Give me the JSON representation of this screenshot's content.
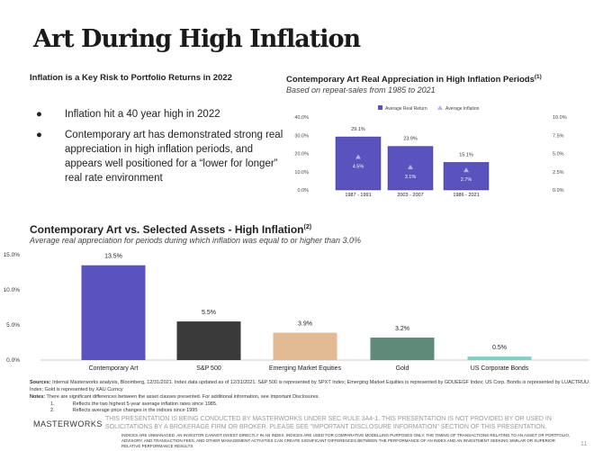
{
  "title": "Art During High Inflation",
  "left": {
    "heading": "Inflation is a Key Risk to Portfolio Returns in 2022",
    "bullets": [
      "Inflation hit a 40 year high in 2022",
      "Contemporary art has demonstrated strong real appreciation in high inflation periods, and appears well positioned for a “lower for longer” real rate environment"
    ]
  },
  "colors": {
    "purple": "#5a52bd",
    "triangle": "#b7b2e8"
  },
  "chart_data": [
    {
      "type": "bar",
      "title": "Contemporary Art Real Appreciation in High Inflation Periods",
      "title_sup": "(1)",
      "subtitle": "Based on repeat-sales from 1985 to 2021",
      "categories": [
        "1987 - 1991",
        "2003 - 2007",
        "1986 - 2021"
      ],
      "series": [
        {
          "name": "Average Real Return",
          "values": [
            29.1,
            23.9,
            15.1
          ],
          "labels": [
            "29.1%",
            "23.9%",
            "15.1%"
          ],
          "axis": "left",
          "type": "bar"
        },
        {
          "name": "Average Inflation",
          "values": [
            4.5,
            3.1,
            2.7
          ],
          "labels": [
            "4.5%",
            "3.1%",
            "2.7%"
          ],
          "axis": "right",
          "type": "scatter",
          "marker": "triangle"
        }
      ],
      "ylim": [
        0,
        40
      ],
      "yticks": [
        "0.0%",
        "10.0%",
        "20.0%",
        "30.0%",
        "40.0%"
      ],
      "y2lim": [
        0,
        10
      ],
      "y2ticks": [
        "0.0%",
        "2.5%",
        "5.0%",
        "7.5%",
        "10.0%"
      ],
      "legend": "top",
      "grid": false
    },
    {
      "type": "bar",
      "title": "Contemporary Art vs. Selected Assets - High Inflation",
      "title_sup": "(2)",
      "subtitle": "Average real appreciation for periods during which inflation was equal to or higher than 3.0%",
      "categories": [
        "Contemporary Art",
        "S&P 500",
        "Emerging Market Equities",
        "Gold",
        "US Corporate Bonds"
      ],
      "values": [
        13.5,
        5.5,
        3.9,
        3.2,
        0.5
      ],
      "labels": [
        "13.5%",
        "5.5%",
        "3.9%",
        "3.2%",
        "0.5%"
      ],
      "colors": [
        "#5a52bd",
        "#3a3a3a",
        "#e2ba93",
        "#5f8a79",
        "#7fd0c4"
      ],
      "ylim": [
        0,
        15
      ],
      "yticks": [
        "0.0%",
        "5.0%",
        "10.0%",
        "15.0%"
      ],
      "grid": false
    }
  ],
  "footer": {
    "sources_label": "Sources:",
    "sources": " Internal Masterworks analysis, Bloomberg, 12/31/2021. Index data updated as of 12/31/2021. S&P 500 is represented by SPXT Index; Emerging Market Equities is represented by GDUEEGF Index; US Corp. Bonds is represented by LUACTRUU Index; Gold is represented by XAU Curncy",
    "notes_label": "Notes:",
    "notes": " There are significant differences between the asset classes presented. For additional information, see Important Disclosures.",
    "note_items": [
      {
        "n": "1.",
        "t": "Reflects the two highest 5-year average inflation rates since 1985."
      },
      {
        "n": "2.",
        "t": "Reflects average price changes in the indices since 1995"
      }
    ],
    "disclaimer": "THIS PRESENTATION IS BEING CONDUCTED BY MASTERWORKS UNDER SEC RULE 3A4-1. THIS PRESENTATION IS NOT PROVIDED BY OR USED IN SOLICITATIONS BY A BROKERAGE FIRM OR BROKER. PLEASE SEE \"IMPORTANT DISCLOSURE INFORMATION\" SECTION OF THIS PRESENTATION.",
    "logo": "MASTERWORKS",
    "page": "11",
    "indices": "INDICES ARE UNMANAGED. AN INVESTOR CANNOT INVEST DIRECTLY IN AN INDEX. INDICES ARE USED FOR COMPARATIVE MODELLING PURPOSES ONLY. THE TIMING OF TRANSACTIONS RELATING TO AN ASSET OR PORTFOLIO, ADVISORY, AND TRANSACTION FEES, AND OTHER MANAGEMENT ACTIVITIES CAN CREATE SIGNIFICANT DIFFERENCES BETWEEN THE PERFORMANCE OF AN INDEX AND AN INVESTMENT SEEKING SIMILAR OR SUPERIOR RELATIVE PERFORMANCE RESULTS"
  }
}
